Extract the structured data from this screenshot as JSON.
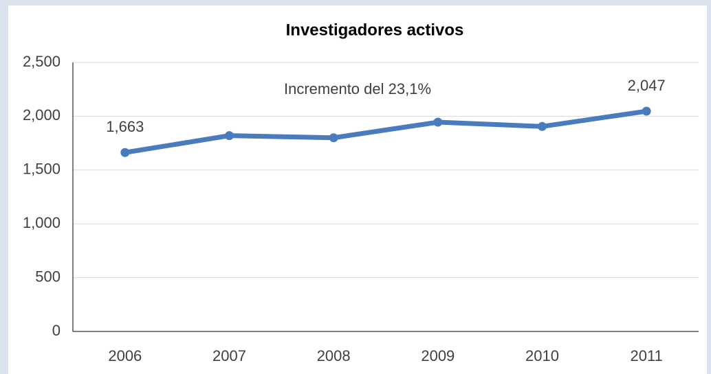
{
  "chart_data": {
    "type": "line",
    "title": "Investigadores activos",
    "annotation": "Incremento del 23,1%",
    "categories": [
      "2006",
      "2007",
      "2008",
      "2009",
      "2010",
      "2011"
    ],
    "values": [
      1663,
      1820,
      1800,
      1945,
      1905,
      2047
    ],
    "value_labels": [
      "1,663",
      null,
      null,
      null,
      null,
      "2,047"
    ],
    "color": "#4a7bbd",
    "ylim": [
      0,
      2500
    ],
    "yticks": [
      0,
      500,
      {
        "value": 1000,
        "label": "1,000"
      },
      {
        "value": 1500,
        "label": "1,500"
      },
      {
        "value": 2000,
        "label": "2,000"
      },
      {
        "value": 2500,
        "label": "2,500"
      }
    ],
    "grid": true
  }
}
